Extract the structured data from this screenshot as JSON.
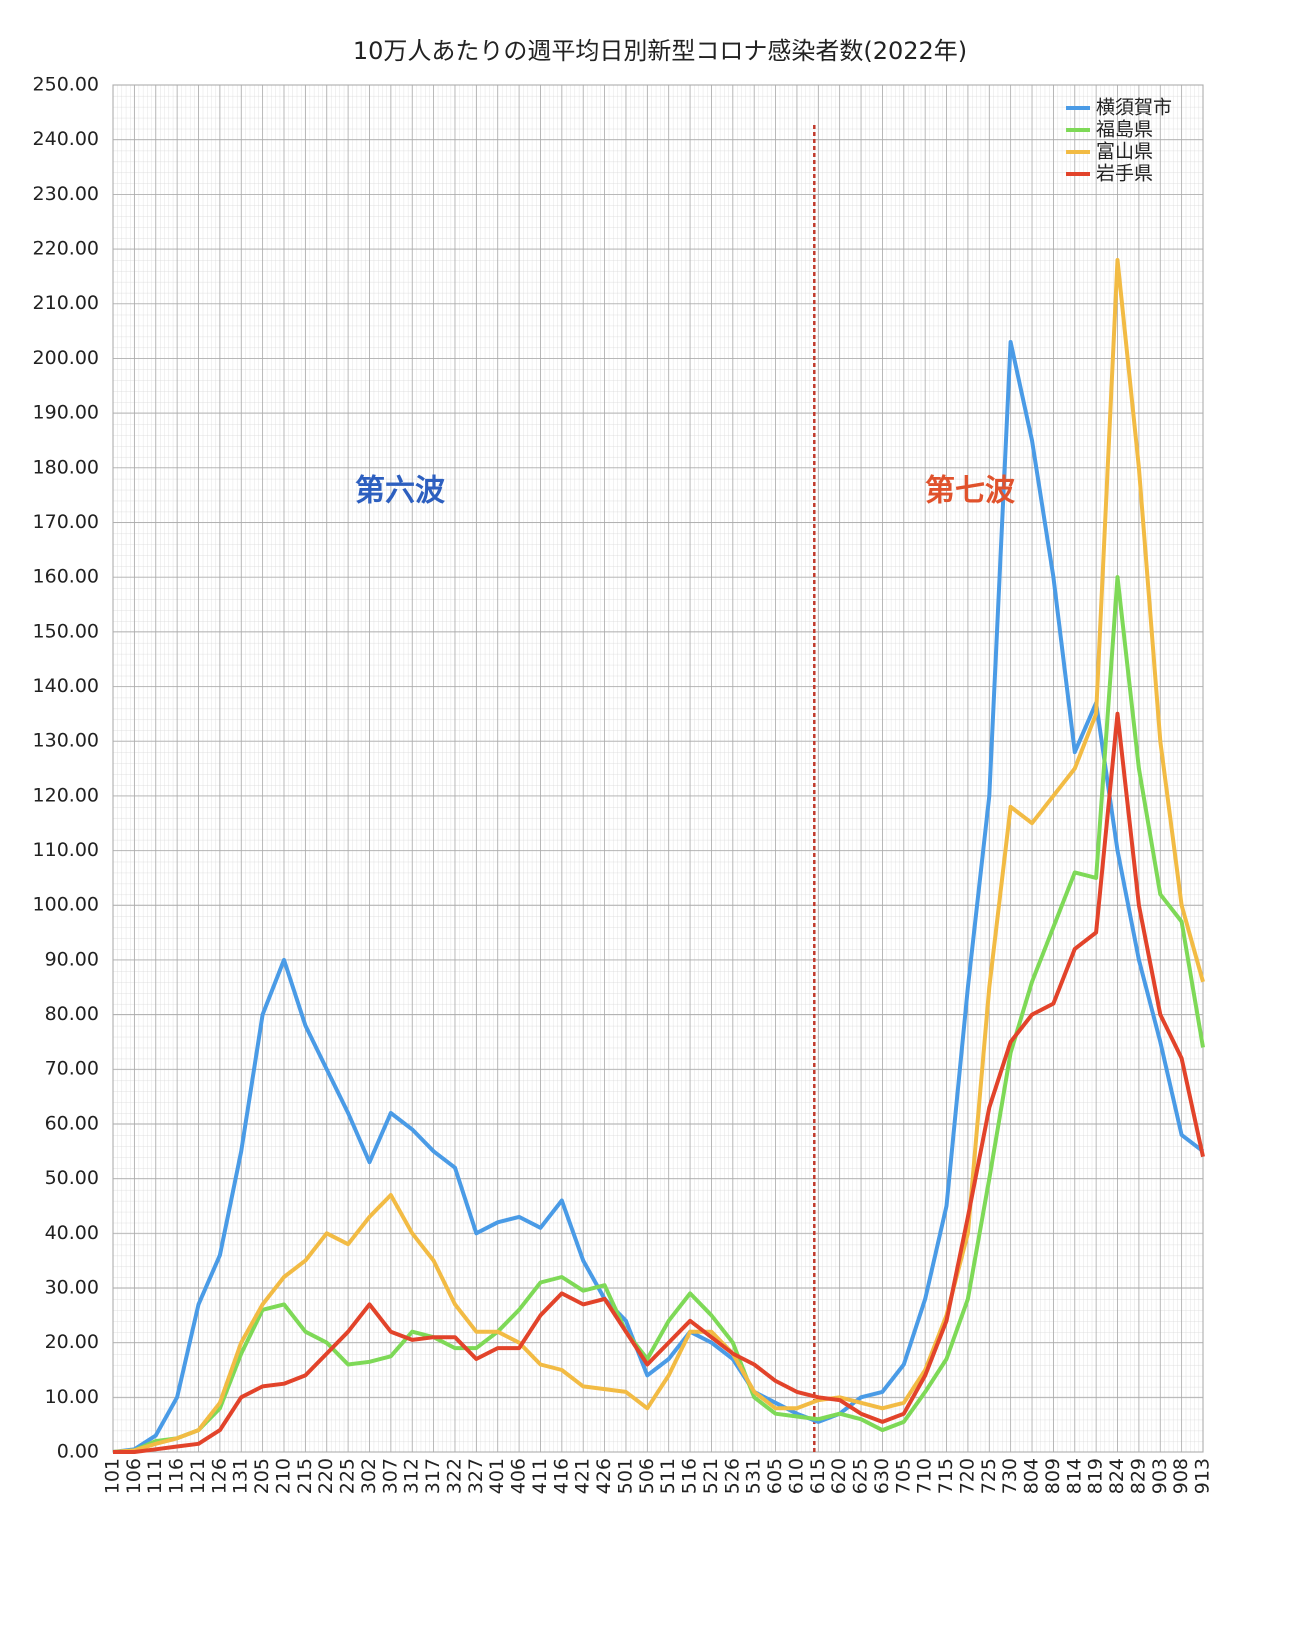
{
  "chart_data": {
    "type": "line",
    "title": "10万人あたりの週平均日別新型コロナ感染者数(2022年)",
    "categories": [
      "101",
      "106",
      "111",
      "116",
      "121",
      "126",
      "131",
      "205",
      "210",
      "215",
      "220",
      "225",
      "302",
      "307",
      "312",
      "317",
      "322",
      "327",
      "401",
      "406",
      "411",
      "416",
      "421",
      "426",
      "501",
      "506",
      "511",
      "516",
      "521",
      "526",
      "531",
      "605",
      "610",
      "615",
      "620",
      "625",
      "630",
      "705",
      "710",
      "715",
      "720",
      "725",
      "730",
      "804",
      "809",
      "814",
      "819",
      "824",
      "829",
      "903",
      "908",
      "913"
    ],
    "series": [
      {
        "name": "横須賀市",
        "color": "#4a9be6",
        "values": [
          0,
          0.5,
          3,
          10,
          27,
          36,
          55,
          80,
          90,
          78,
          70,
          62,
          53,
          62,
          59,
          55,
          52,
          40,
          42,
          43,
          41,
          46,
          35,
          28,
          24,
          14,
          17,
          22,
          20,
          17,
          11,
          9,
          7,
          5.5,
          7,
          10,
          11,
          16,
          28,
          45,
          85,
          120,
          203,
          185,
          160,
          128,
          137,
          110,
          90,
          75,
          58,
          55
        ]
      },
      {
        "name": "福島県",
        "color": "#7ed957",
        "values": [
          0,
          0.3,
          2,
          2.5,
          4,
          8,
          18,
          26,
          27,
          22,
          20,
          16,
          16.5,
          17.5,
          22,
          21,
          19,
          19,
          22,
          26,
          31,
          32,
          29.5,
          30.5,
          22,
          17,
          24,
          29,
          25,
          20,
          10,
          7,
          6.5,
          6,
          7,
          6,
          4,
          5.5,
          11,
          17,
          28,
          50,
          73,
          86,
          96,
          106,
          105,
          160,
          125,
          102,
          97,
          74
        ]
      },
      {
        "name": "富山県",
        "color": "#f2bb44",
        "values": [
          0,
          0.3,
          1.5,
          2.5,
          4,
          9,
          20,
          27,
          32,
          35,
          40,
          38,
          43,
          47,
          40,
          35,
          27,
          22,
          22,
          20,
          16,
          15,
          12,
          11.5,
          11,
          8,
          14,
          22,
          22,
          18,
          11,
          8,
          8,
          9.5,
          10,
          9,
          8,
          9,
          15,
          25,
          40,
          85,
          118,
          115,
          120,
          125,
          135,
          218,
          180,
          130,
          100,
          86
        ]
      },
      {
        "name": "岩手県",
        "color": "#e2432a",
        "values": [
          0,
          0,
          0.5,
          1,
          1.5,
          4,
          10,
          12,
          12.5,
          14,
          18,
          22,
          27,
          22,
          20.5,
          21,
          21,
          17,
          19,
          19,
          25,
          29,
          27,
          28,
          22,
          16,
          20,
          24,
          21,
          18,
          16,
          13,
          11,
          10,
          9.5,
          7,
          5.5,
          7,
          14,
          24,
          43,
          63,
          75,
          80,
          82,
          92,
          95,
          135,
          100,
          80,
          72,
          54
        ]
      }
    ],
    "ylim": [
      0,
      250
    ],
    "yticks": [
      {
        "value": 0,
        "label": "0.00"
      },
      {
        "value": 10,
        "label": "10.00"
      },
      {
        "value": 20,
        "label": "20.00"
      },
      {
        "value": 30,
        "label": "30.00"
      },
      {
        "value": 40,
        "label": "40.00"
      },
      {
        "value": 50,
        "label": "50.00"
      },
      {
        "value": 60,
        "label": "60.00"
      },
      {
        "value": 70,
        "label": "70.00"
      },
      {
        "value": 80,
        "label": "80.00"
      },
      {
        "value": 90,
        "label": "90.00"
      },
      {
        "value": 100,
        "label": "100.00"
      },
      {
        "value": 110,
        "label": "110.00"
      },
      {
        "value": 120,
        "label": "120.00"
      },
      {
        "value": 130,
        "label": "130.00"
      },
      {
        "value": 140,
        "label": "140.00"
      },
      {
        "value": 150,
        "label": "150.00"
      },
      {
        "value": 160,
        "label": "160.00"
      },
      {
        "value": 170,
        "label": "170.00"
      },
      {
        "value": 180,
        "label": "180.00"
      },
      {
        "value": 190,
        "label": "190.00"
      },
      {
        "value": 200,
        "label": "200.00"
      },
      {
        "value": 210,
        "label": "210.00"
      },
      {
        "value": 220,
        "label": "220.00"
      },
      {
        "value": 230,
        "label": "230.00"
      },
      {
        "value": 240,
        "label": "240.00"
      },
      {
        "value": 250,
        "label": "250.00"
      }
    ],
    "grid": true,
    "legend": "top-right",
    "divider": "615",
    "divider_color": "#c0392b",
    "annotations": [
      {
        "text": "第六波",
        "color": "#2d5fbf"
      },
      {
        "text": "第七波",
        "color": "#e0522c"
      }
    ]
  }
}
